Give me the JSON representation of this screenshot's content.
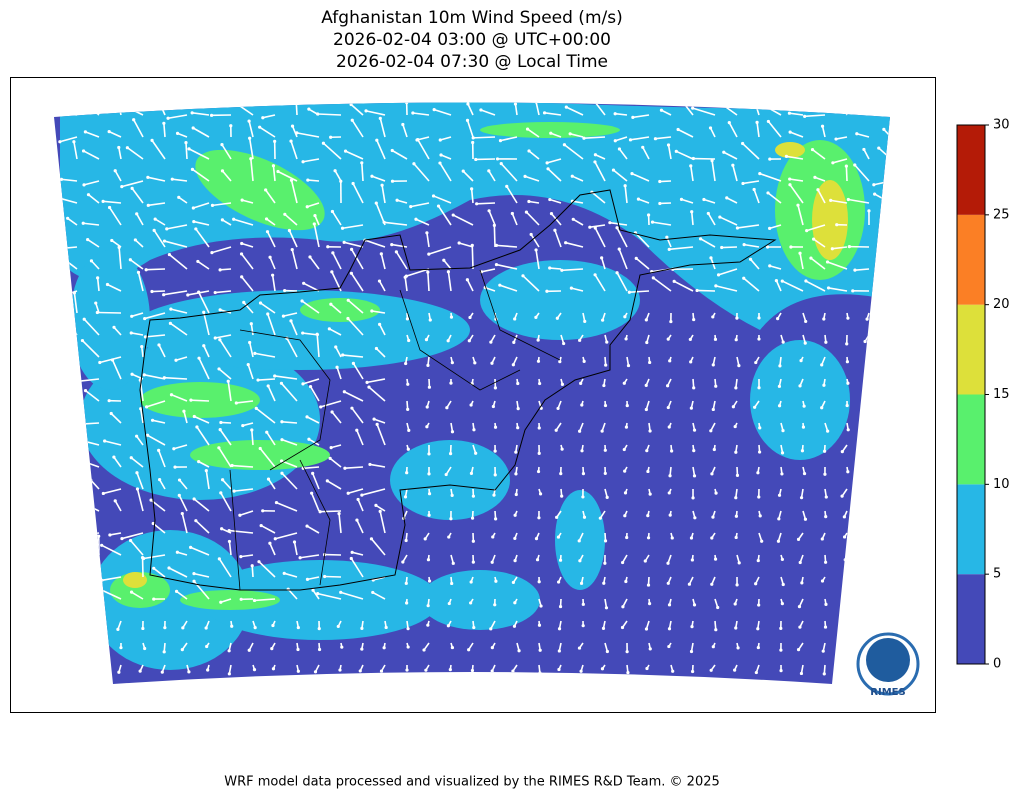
{
  "title": [
    "Afghanistan 10m Wind Speed (m/s)",
    "2026-02-04 03:00 @ UTC+00:00",
    "2026-02-04 07:30 @ Local Time"
  ],
  "colorbar": {
    "ticks": [
      0,
      5,
      10,
      15,
      20,
      25,
      30
    ],
    "colors": [
      "#4449b8",
      "#27b7e6",
      "#59f06d",
      "#dde03a",
      "#fb7f25",
      "#b41b07"
    ]
  },
  "logo": "RIMES",
  "footer": "WRF model data processed and visualized by the RIMES R&D Team. © 2025"
}
